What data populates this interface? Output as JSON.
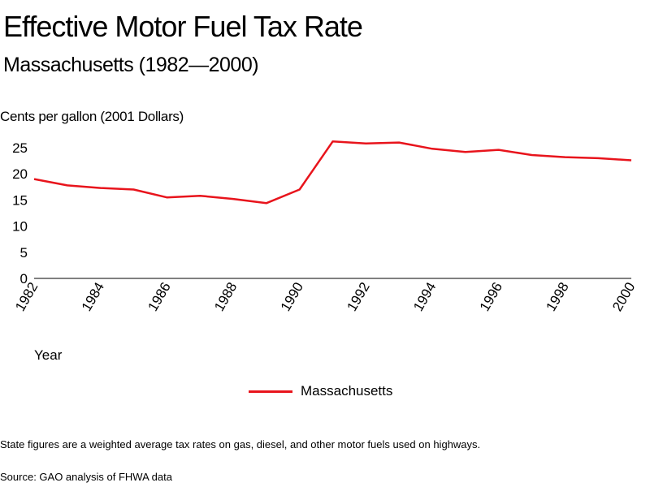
{
  "header": {
    "title": "Effective Motor Fuel Tax Rate",
    "subtitle": "Massachusetts (1982—2000)"
  },
  "footer": {
    "note": "State figures are a weighted average tax rates on gas, diesel, and other motor fuels used on highways.",
    "source": "Source: GAO analysis of FHWA data"
  },
  "colors": {
    "series": "#e8141c",
    "axis": "#000000"
  },
  "chart_data": {
    "type": "line",
    "ylabel": "Cents per gallon (2001 Dollars)",
    "xlabel": "Year",
    "ylim": [
      0,
      25
    ],
    "yticks": [
      "0",
      "5",
      "10",
      "15",
      "20",
      "25"
    ],
    "xlim": [
      1982,
      2000
    ],
    "xticks": [
      "1982",
      "1984",
      "1986",
      "1988",
      "1990",
      "1992",
      "1994",
      "1996",
      "1998",
      "2000"
    ],
    "grid": false,
    "legend_position": "bottom-center",
    "series": [
      {
        "name": "Massachusetts",
        "x": [
          1982,
          1983,
          1984,
          1985,
          1986,
          1987,
          1988,
          1989,
          1990,
          1991,
          1992,
          1993,
          1994,
          1995,
          1996,
          1997,
          1998,
          1999,
          2000
        ],
        "values": [
          19.0,
          17.8,
          17.3,
          17.0,
          15.5,
          15.8,
          15.2,
          14.4,
          17.0,
          26.2,
          25.8,
          26.0,
          24.8,
          24.2,
          24.6,
          23.6,
          23.2,
          23.0,
          22.6
        ]
      }
    ]
  }
}
